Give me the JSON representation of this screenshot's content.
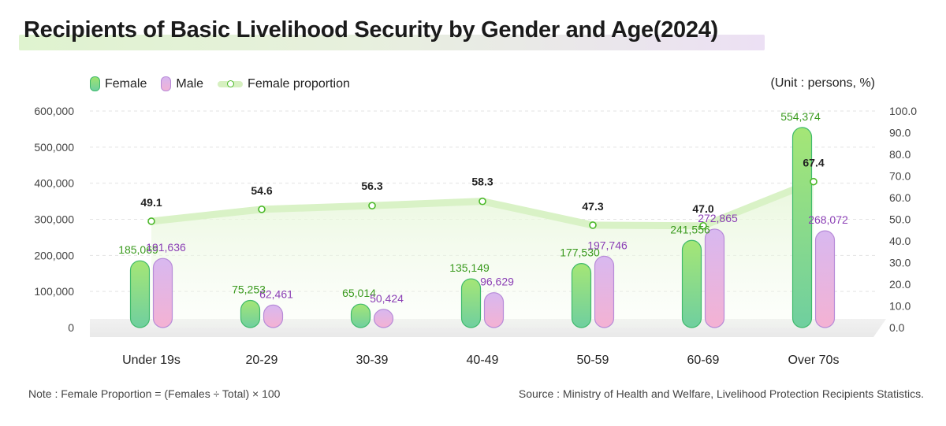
{
  "title": "Recipients of Basic Livelihood Security by Gender and Age(2024)",
  "unit": "(Unit : persons, %)",
  "legend": {
    "female": "Female",
    "male": "Male",
    "proportion": "Female proportion"
  },
  "note": "Note : Female Proportion = (Females ÷ Total) × 100",
  "source": "Source : Ministry of Health and Welfare, Livelihood Protection Recipients Statistics.",
  "colors": {
    "female_label": "#3a9a1e",
    "male_label": "#8b3fb5",
    "proportion_line": "#d9f2c6",
    "proportion_dot": "#4cb82a"
  },
  "chart_data": {
    "type": "bar",
    "title": "Recipients of Basic Livelihood Security by Gender and Age(2024)",
    "categories": [
      "Under 19s",
      "20-29",
      "30-39",
      "40-49",
      "50-59",
      "60-69",
      "Over 70s"
    ],
    "series": [
      {
        "name": "Female",
        "type": "bar",
        "axis": "left",
        "values": [
          185069,
          75253,
          65014,
          135149,
          177530,
          241556,
          554374
        ],
        "labels": [
          "185,069",
          "75,253",
          "65,014",
          "135,149",
          "177,530",
          "241,556",
          "554,374"
        ]
      },
      {
        "name": "Male",
        "type": "bar",
        "axis": "left",
        "values": [
          191636,
          62461,
          50424,
          96629,
          197746,
          272865,
          268072
        ],
        "labels": [
          "191,636",
          "62,461",
          "50,424",
          "96,629",
          "197,746",
          "272,865",
          "268,072"
        ]
      },
      {
        "name": "Female proportion",
        "type": "line",
        "axis": "right",
        "values": [
          49.1,
          54.6,
          56.3,
          58.3,
          47.3,
          47.0,
          67.4
        ],
        "labels": [
          "49.1",
          "54.6",
          "56.3",
          "58.3",
          "47.3",
          "47.0",
          "67.4"
        ]
      }
    ],
    "ylim_left": [
      0,
      600000
    ],
    "ylim_right": [
      0,
      100
    ],
    "yticks_left": [
      "600,000",
      "500,000",
      "400,000",
      "300,000",
      "200,000",
      "100,000",
      "0"
    ],
    "yticks_right": [
      "100.0",
      "90.0",
      "80.0",
      "70.0",
      "60.0",
      "50.0",
      "40.0",
      "30.0",
      "20.0",
      "10.0",
      "0.0"
    ],
    "grid": true,
    "legend_position": "top-left"
  }
}
